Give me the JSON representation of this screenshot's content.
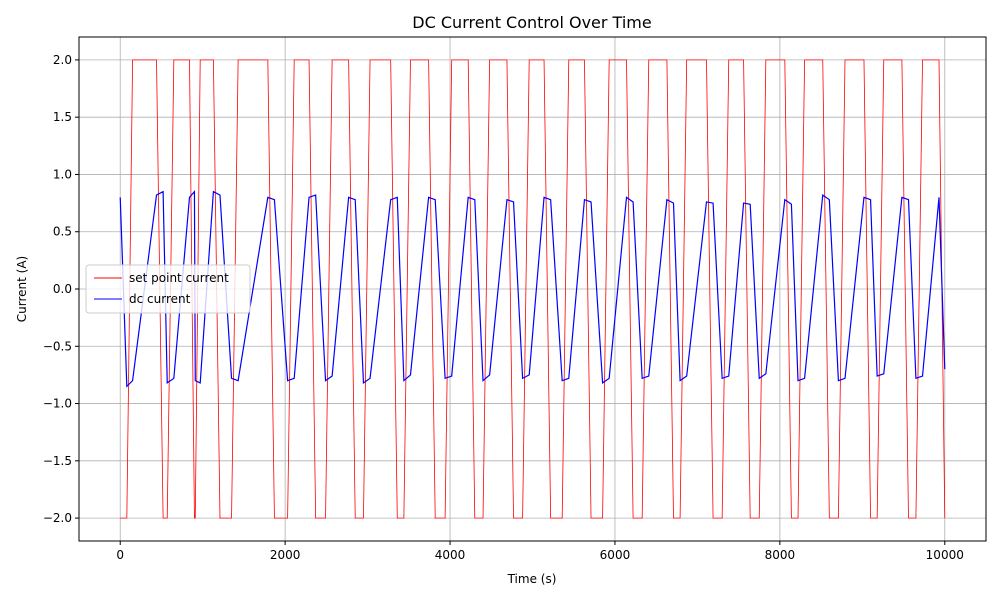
{
  "chart_data": {
    "type": "line",
    "title": "DC Current Control Over Time",
    "x_label": "Time (s)",
    "y_label": "Current (A)",
    "x": [
      0,
      80,
      150,
      440,
      520,
      570,
      650,
      840,
      900,
      910,
      970,
      1130,
      1210,
      1350,
      1430,
      1790,
      1870,
      2030,
      2110,
      2290,
      2370,
      2490,
      2570,
      2770,
      2850,
      2950,
      3030,
      3280,
      3360,
      3440,
      3520,
      3740,
      3820,
      3940,
      4020,
      4220,
      4300,
      4400,
      4480,
      4690,
      4770,
      4880,
      4960,
      5140,
      5220,
      5360,
      5440,
      5630,
      5710,
      5850,
      5930,
      6140,
      6220,
      6330,
      6410,
      6630,
      6710,
      6790,
      6870,
      7110,
      7190,
      7300,
      7380,
      7560,
      7640,
      7750,
      7830,
      8060,
      8140,
      8220,
      8300,
      8520,
      8600,
      8710,
      8790,
      9020,
      9100,
      9180,
      9260,
      9480,
      9560,
      9650,
      9730,
      9930,
      10000
    ],
    "series": [
      {
        "name": "set point current",
        "color": "#ff0000",
        "values": [
          -2,
          -2,
          2,
          2,
          -2,
          -2,
          2,
          2,
          -2,
          -2,
          2,
          2,
          -2,
          -2,
          2,
          2,
          -2,
          -2,
          2,
          2,
          -2,
          -2,
          2,
          2,
          -2,
          -2,
          2,
          2,
          -2,
          -2,
          2,
          2,
          -2,
          -2,
          2,
          2,
          -2,
          -2,
          2,
          2,
          -2,
          -2,
          2,
          2,
          -2,
          -2,
          2,
          2,
          -2,
          -2,
          2,
          2,
          -2,
          -2,
          2,
          2,
          -2,
          -2,
          2,
          2,
          -2,
          -2,
          2,
          2,
          -2,
          -2,
          2,
          2,
          -2,
          -2,
          2,
          2,
          -2,
          -2,
          2,
          2,
          -2,
          -2,
          2,
          2,
          -2,
          -2,
          2,
          2,
          -2
        ]
      },
      {
        "name": "dc current",
        "color": "#0000ff",
        "values": [
          0.8,
          -0.85,
          -0.8,
          0.82,
          0.85,
          -0.82,
          -0.78,
          0.8,
          0.85,
          -0.8,
          -0.82,
          0.85,
          0.82,
          -0.78,
          -0.8,
          0.8,
          0.78,
          -0.8,
          -0.78,
          0.8,
          0.82,
          -0.8,
          -0.76,
          0.8,
          0.78,
          -0.82,
          -0.78,
          0.78,
          0.8,
          -0.8,
          -0.75,
          0.8,
          0.78,
          -0.78,
          -0.76,
          0.8,
          0.78,
          -0.8,
          -0.75,
          0.78,
          0.76,
          -0.78,
          -0.75,
          0.8,
          0.78,
          -0.8,
          -0.78,
          0.78,
          0.76,
          -0.82,
          -0.78,
          0.8,
          0.76,
          -0.78,
          -0.76,
          0.78,
          0.75,
          -0.8,
          -0.76,
          0.76,
          0.75,
          -0.78,
          -0.76,
          0.75,
          0.74,
          -0.78,
          -0.74,
          0.78,
          0.74,
          -0.8,
          -0.78,
          0.82,
          0.78,
          -0.8,
          -0.78,
          0.8,
          0.78,
          -0.76,
          -0.74,
          0.8,
          0.78,
          -0.78,
          -0.76,
          0.8,
          -0.7
        ]
      }
    ],
    "xlim": [
      -500,
      10500
    ],
    "ylim": [
      -2.2,
      2.2
    ],
    "xticks": [
      0,
      2000,
      4000,
      6000,
      8000,
      10000
    ],
    "yticks": [
      {
        "value": -2,
        "label": "−2.0"
      },
      {
        "value": -1.5,
        "label": "−1.5"
      },
      {
        "value": -1,
        "label": "−1.0"
      },
      {
        "value": -0.5,
        "label": "−0.5"
      },
      {
        "value": 0,
        "label": "0.0"
      },
      {
        "value": 0.5,
        "label": "0.5"
      },
      {
        "value": 1,
        "label": "1.0"
      },
      {
        "value": 1.5,
        "label": "1.5"
      },
      {
        "value": 2,
        "label": "2.0"
      }
    ],
    "grid": true,
    "legend": "center left"
  }
}
